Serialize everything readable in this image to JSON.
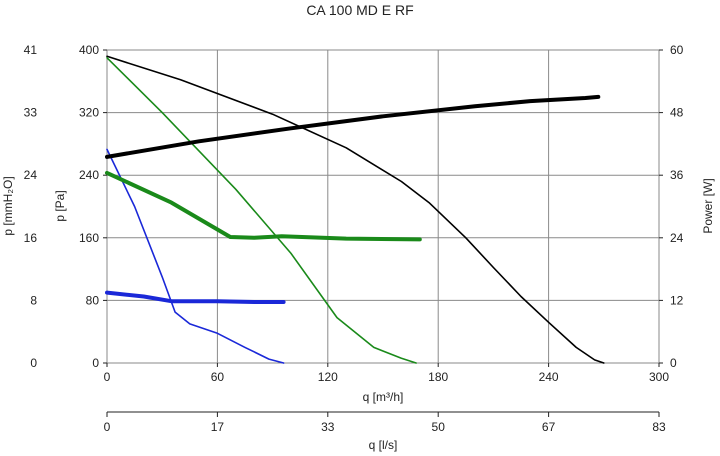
{
  "chart_data": {
    "type": "line",
    "title": "CA 100 MD E RF",
    "xlabel": "q [m³/h]",
    "x2label": "q [l/s]",
    "ylabel": "p [Pa]",
    "ylabel_left": "p [mmH₂O]",
    "ylabel_right": "Power [W]",
    "xlim": [
      0,
      300
    ],
    "ylim": [
      0,
      400
    ],
    "y_right_lim": [
      0,
      60
    ],
    "grid": true,
    "x_ticks": [
      "0",
      "60",
      "120",
      "180",
      "240",
      "300"
    ],
    "x2_ticks": [
      "0",
      "17",
      "33",
      "50",
      "67",
      "83"
    ],
    "y_ticks": [
      "0",
      "80",
      "160",
      "240",
      "320",
      "400"
    ],
    "y_left_ticks": [
      "0",
      "8",
      "16",
      "24",
      "33",
      "41"
    ],
    "y_right_ticks": [
      "0",
      "12",
      "24",
      "36",
      "48",
      "60"
    ],
    "series": [
      {
        "color": "#000000",
        "stroke": "thin",
        "axis": "pressure",
        "points": [
          [
            0,
            392
          ],
          [
            40,
            362
          ],
          [
            90,
            318
          ],
          [
            130,
            275
          ],
          [
            160,
            232
          ],
          [
            175,
            205
          ],
          [
            195,
            160
          ],
          [
            210,
            122
          ],
          [
            225,
            85
          ],
          [
            240,
            52
          ],
          [
            255,
            20
          ],
          [
            265,
            4
          ],
          [
            270,
            0
          ]
        ]
      },
      {
        "color": "#1a8a1a",
        "stroke": "thin",
        "axis": "pressure",
        "points": [
          [
            0,
            390
          ],
          [
            30,
            320
          ],
          [
            70,
            222
          ],
          [
            100,
            140
          ],
          [
            125,
            58
          ],
          [
            145,
            20
          ],
          [
            160,
            6
          ],
          [
            168,
            0
          ]
        ]
      },
      {
        "color": "#1a28d8",
        "stroke": "thin",
        "axis": "pressure",
        "points": [
          [
            0,
            273
          ],
          [
            15,
            200
          ],
          [
            30,
            110
          ],
          [
            37,
            65
          ],
          [
            45,
            50
          ],
          [
            60,
            38
          ],
          [
            75,
            20
          ],
          [
            88,
            5
          ],
          [
            96,
            0
          ]
        ]
      },
      {
        "color": "#000000",
        "stroke": "thick",
        "axis": "power",
        "points": [
          [
            0,
            39.5
          ],
          [
            50,
            42.5
          ],
          [
            100,
            45
          ],
          [
            150,
            47.3
          ],
          [
            200,
            49.2
          ],
          [
            230,
            50.2
          ],
          [
            260,
            50.8
          ],
          [
            267,
            51
          ]
        ]
      },
      {
        "color": "#1a8a1a",
        "stroke": "thick",
        "axis": "pressure",
        "points": [
          [
            0,
            243
          ],
          [
            35,
            205
          ],
          [
            67,
            161
          ],
          [
            80,
            160
          ],
          [
            95,
            162
          ],
          [
            130,
            159
          ],
          [
            170,
            158
          ]
        ]
      },
      {
        "color": "#1a28d8",
        "stroke": "thick",
        "axis": "pressure",
        "points": [
          [
            0,
            90
          ],
          [
            20,
            85
          ],
          [
            35,
            79
          ],
          [
            60,
            79
          ],
          [
            80,
            78
          ],
          [
            96,
            78
          ]
        ]
      }
    ]
  }
}
